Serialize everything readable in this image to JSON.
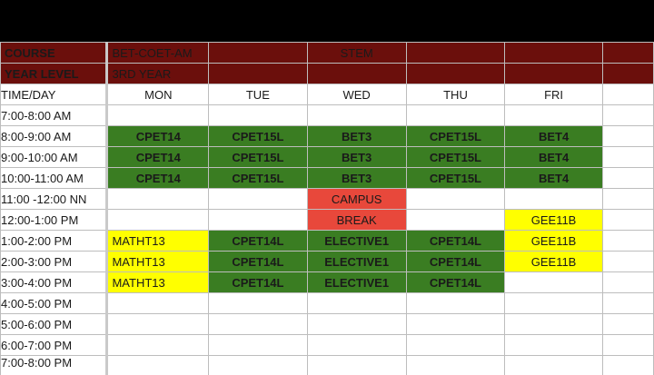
{
  "header": {
    "course_label": "COURSE",
    "course_value": "BET-COET-AM",
    "strand": "STEM",
    "year_label": "YEAR LEVEL",
    "year_value": "3RD YEAR"
  },
  "table": {
    "time_header": "TIME/DAY",
    "days": [
      "MON",
      "TUE",
      "WED",
      "THU",
      "FRI"
    ],
    "rows": [
      {
        "time": "7:00-8:00 AM",
        "cells": [
          "",
          "",
          "",
          "",
          ""
        ]
      },
      {
        "time": "8:00-9:00 AM",
        "cells": [
          "CPET14",
          "CPET15L",
          "BET3",
          "CPET15L",
          "BET4"
        ]
      },
      {
        "time": "9:00-10:00 AM",
        "cells": [
          "CPET14",
          "CPET15L",
          "BET3",
          "CPET15L",
          "BET4"
        ]
      },
      {
        "time": "10:00-11:00 AM",
        "cells": [
          "CPET14",
          "CPET15L",
          "BET3",
          "CPET15L",
          "BET4"
        ]
      },
      {
        "time": "11:00 -12:00 NN",
        "cells": [
          "",
          "",
          "CAMPUS",
          "",
          ""
        ]
      },
      {
        "time": "12:00-1:00 PM",
        "cells": [
          "",
          "",
          "BREAK",
          "",
          "GEE11B"
        ]
      },
      {
        "time": "1:00-2:00 PM",
        "cells": [
          "MATHT13",
          "CPET14L",
          "ELECTIVE1",
          "CPET14L",
          "GEE11B"
        ]
      },
      {
        "time": "2:00-3:00 PM",
        "cells": [
          "MATHT13",
          "CPET14L",
          "ELECTIVE1",
          "CPET14L",
          "GEE11B"
        ]
      },
      {
        "time": "3:00-4:00 PM",
        "cells": [
          "MATHT13",
          "CPET14L",
          "ELECTIVE1",
          "CPET14L",
          ""
        ]
      },
      {
        "time": "4:00-5:00 PM",
        "cells": [
          "",
          "",
          "",
          "",
          ""
        ]
      },
      {
        "time": "5:00-6:00 PM",
        "cells": [
          "",
          "",
          "",
          "",
          ""
        ]
      },
      {
        "time": "6:00-7:00 PM",
        "cells": [
          "",
          "",
          "",
          "",
          ""
        ]
      },
      {
        "time": "7:00-8:00 PM",
        "cells": [
          "",
          "",
          "",
          "",
          ""
        ]
      }
    ]
  },
  "colors": {
    "header_bg": "#6b0f0c",
    "class_green": "#3a7d22",
    "break_red": "#e8483b",
    "highlight_yellow": "#ffff00",
    "top_bar": "#000000"
  }
}
